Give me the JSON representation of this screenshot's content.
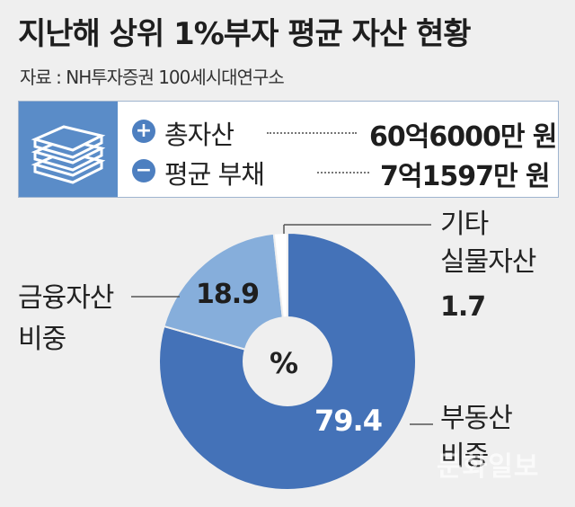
{
  "header": {
    "title": "지난해 상위 1%부자 평균 자산 현황",
    "source": "자료 : NH투자증권 100세시대연구소"
  },
  "summary": {
    "icon": "money-stack-icon",
    "rows": [
      {
        "sign": "+",
        "label": "총자산",
        "value": "60억6000만 원"
      },
      {
        "sign": "−",
        "label": "평균 부채",
        "value": "7억1597만 원"
      }
    ]
  },
  "chart_data": {
    "type": "pie",
    "style": "donut",
    "center_label": "%",
    "unit": "%",
    "slices": [
      {
        "label": "부동산 비중",
        "value": 79.4,
        "color": "#4472b8"
      },
      {
        "label": "금융자산 비중",
        "value": 18.9,
        "color": "#86aedb"
      },
      {
        "label": "기타 실물자산",
        "value": 1.7,
        "color": "#ffffff"
      }
    ],
    "text": {
      "real_estate_line1": "부동산",
      "real_estate_line2": "비중",
      "financial_line1": "금융자산",
      "financial_line2": "비중",
      "other_line1": "기타",
      "other_line2": "실물자산",
      "real_estate_value": "79.4",
      "financial_value": "18.9",
      "other_value": "1.7"
    }
  },
  "watermark": "문화일보",
  "colors": {
    "accent": "#5a8cc8",
    "real_estate": "#4472b8",
    "financial": "#86aedb",
    "background": "#efefef"
  }
}
